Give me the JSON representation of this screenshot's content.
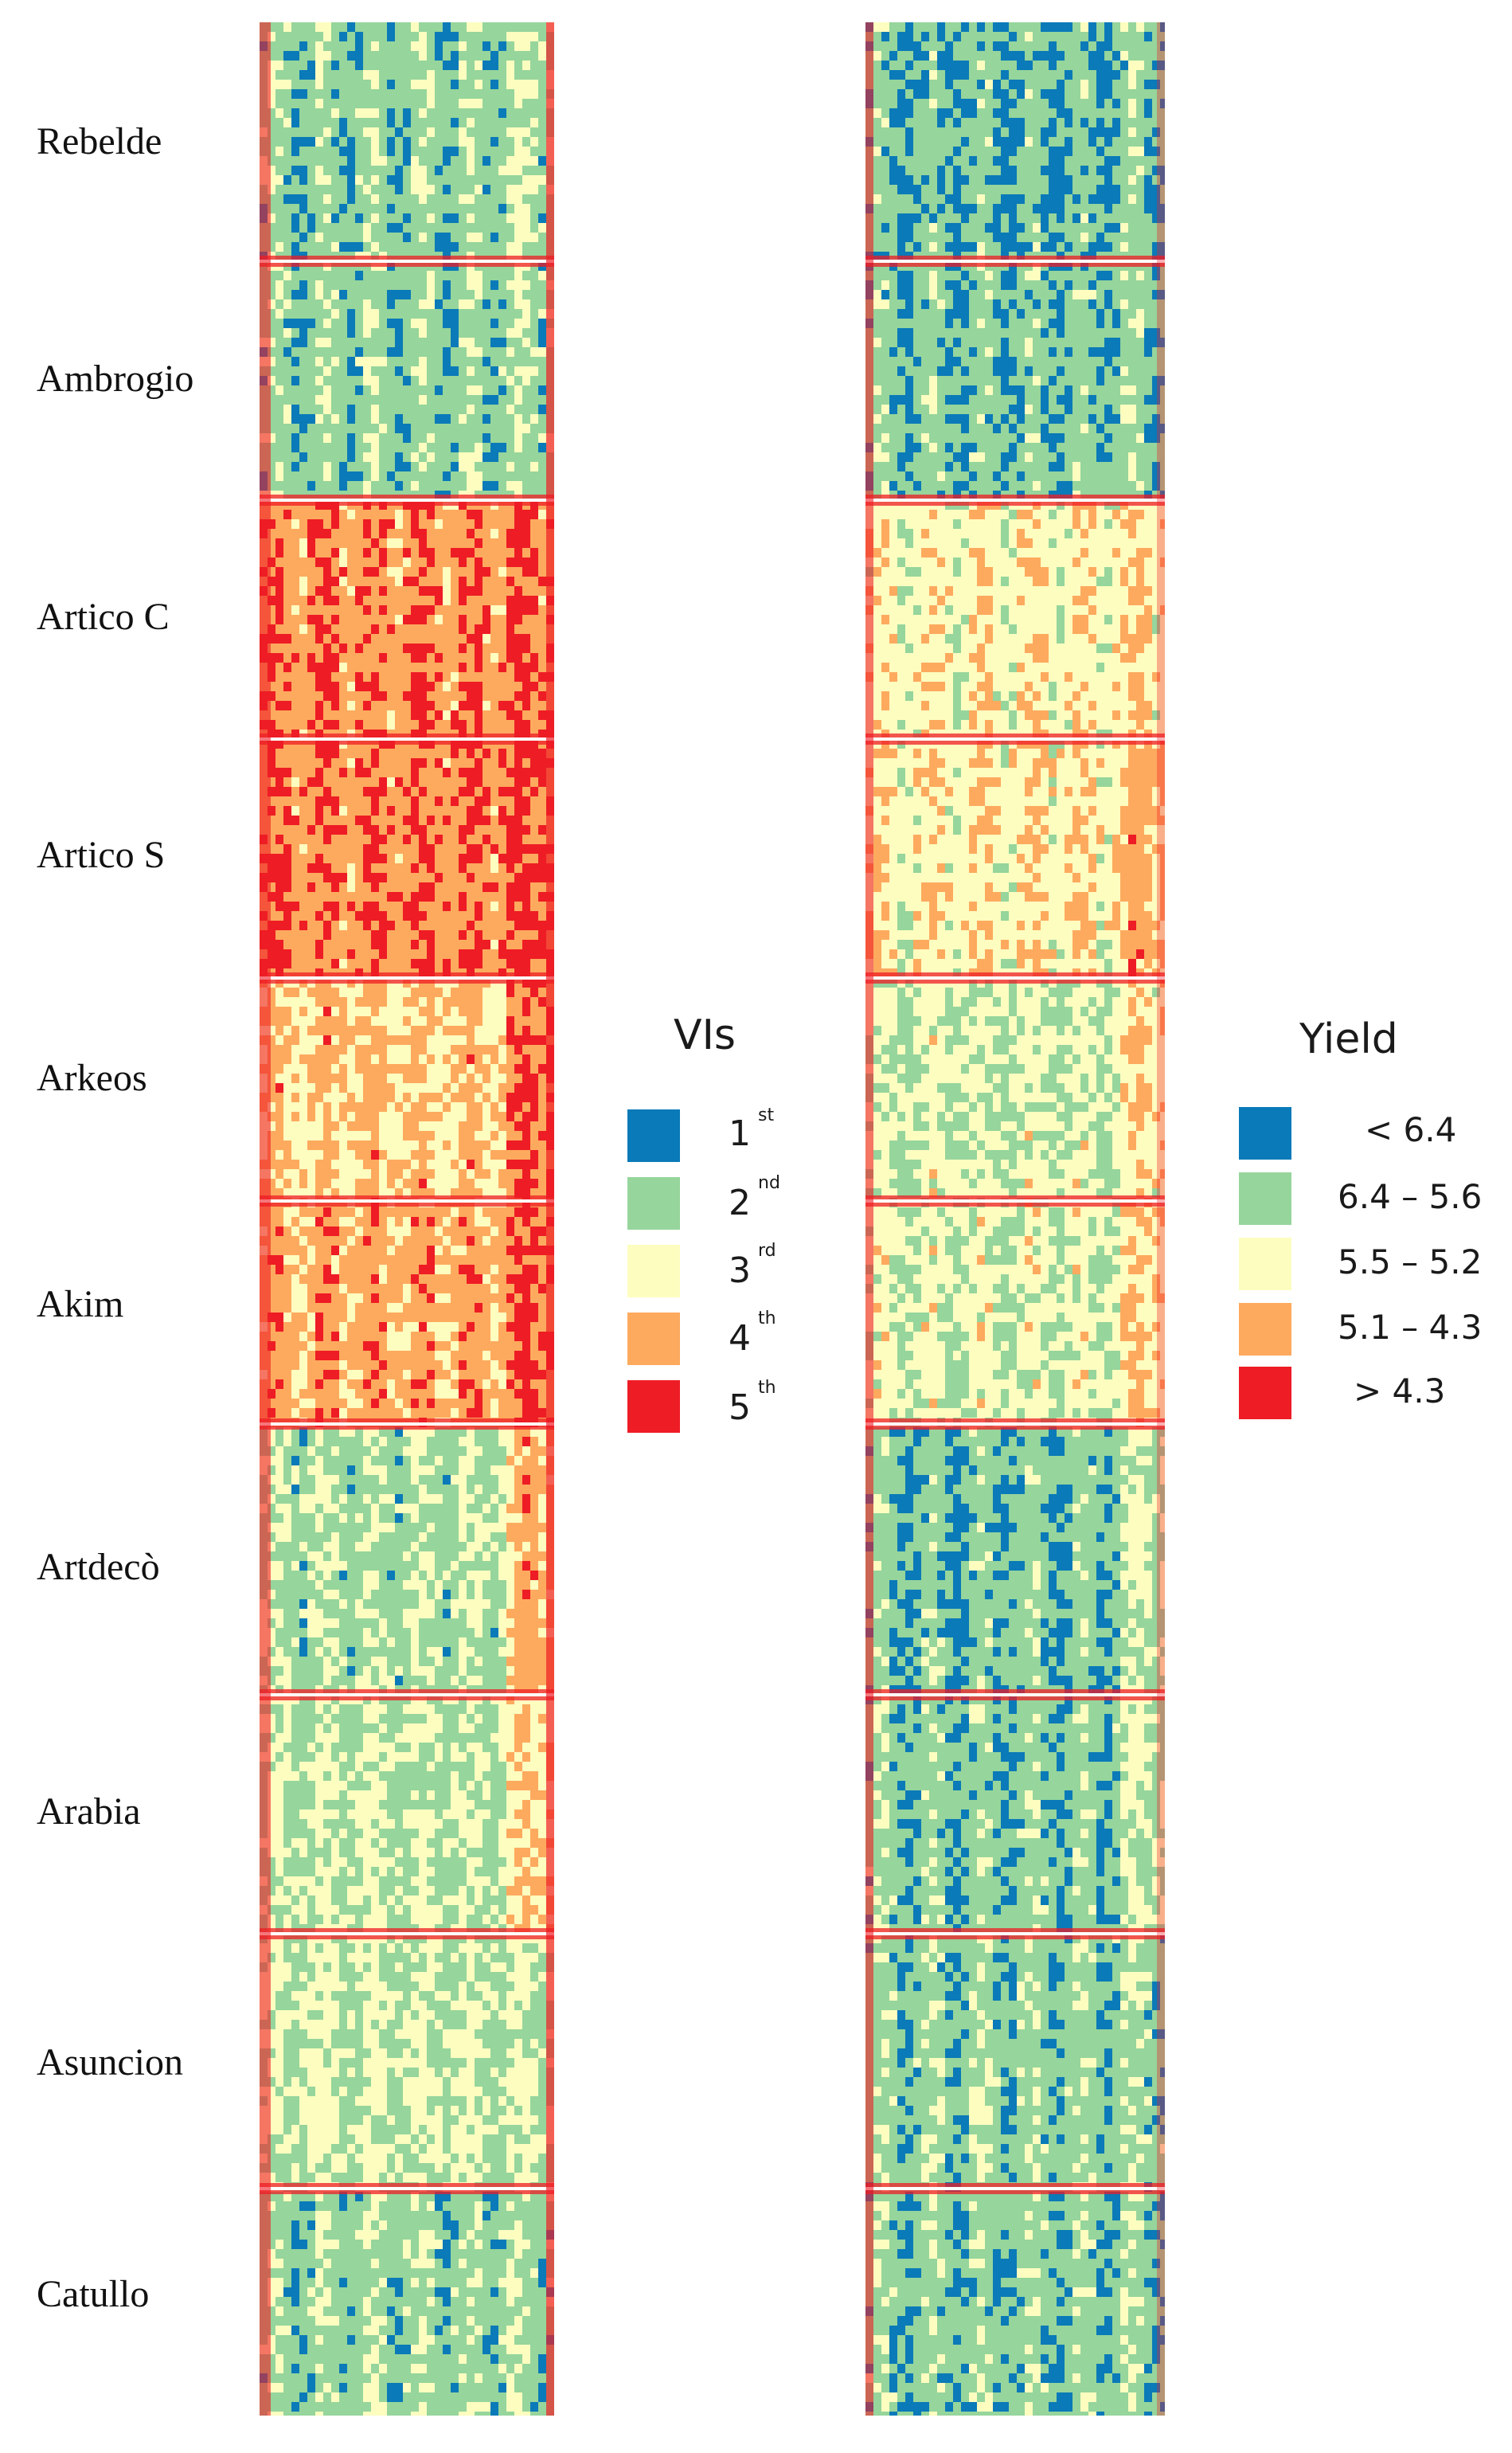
{
  "varieties": [
    "Rebelde",
    "Ambrogio",
    "Artico C",
    "Artico S",
    "Arkeos",
    "Akim",
    "Artdecò",
    "Arabia",
    "Asuncion",
    "Catullo"
  ],
  "vis_map": {
    "name": "VIs classification map",
    "plot_levels": [
      2.0,
      2.0,
      4.2,
      4.3,
      3.6,
      3.9,
      2.3,
      2.5,
      2.5,
      2.1
    ],
    "right_edge_level": [
      2.4,
      2.3,
      4.4,
      4.8,
      4.6,
      4.7,
      4.0,
      3.6,
      2.6,
      2.2
    ],
    "level_scale": "1 = 1st class ... 5 = 5th class"
  },
  "yield_map": {
    "name": "Yield classification map",
    "plot_levels": [
      1.7,
      1.8,
      3.1,
      3.2,
      2.6,
      2.7,
      1.8,
      1.9,
      2.0,
      1.9
    ],
    "right_edge_level": [
      1.9,
      2.0,
      3.4,
      3.9,
      3.4,
      3.5,
      2.6,
      2.6,
      2.2,
      2.0
    ],
    "level_scale": "1 = < 6.4 ... 5 = > 4.3"
  },
  "vis_legend": {
    "title": "VIs",
    "items": [
      {
        "number": "1",
        "suffix": "st",
        "color": "#0a7ab8"
      },
      {
        "number": "2",
        "suffix": "nd",
        "color": "#96d59c"
      },
      {
        "number": "3",
        "suffix": "rd",
        "color": "#fdfdc0"
      },
      {
        "number": "4",
        "suffix": "th",
        "color": "#fdaa5e"
      },
      {
        "number": "5",
        "suffix": "th",
        "color": "#ee1c25"
      }
    ]
  },
  "yield_legend": {
    "title": "Yield",
    "items": [
      {
        "label": "< 6.4",
        "color": "#0a7ab8"
      },
      {
        "label": "6.4 – 5.6",
        "color": "#96d59c"
      },
      {
        "label": "5.5 – 5.2",
        "color": "#fdfdc0"
      },
      {
        "label": "5.1 – 4.3",
        "color": "#fdaa5e"
      },
      {
        "label": "> 4.3",
        "color": "#ee1c25"
      }
    ]
  }
}
